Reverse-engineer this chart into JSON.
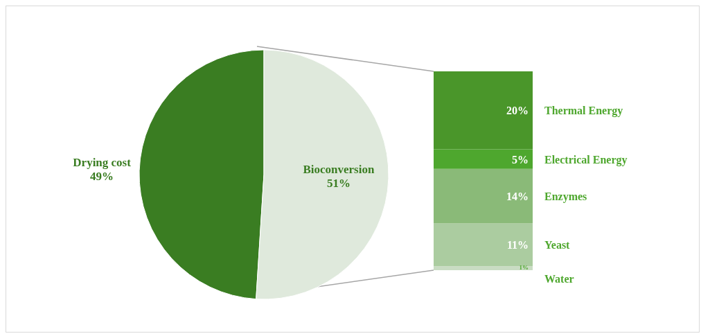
{
  "chart_data": [
    {
      "type": "pie",
      "categories": [
        "Drying cost",
        "Bioconversion"
      ],
      "values": [
        49,
        51
      ],
      "colors": [
        "#3a7d22",
        "#dfe9dc"
      ],
      "value_labels": [
        "49%",
        "51%"
      ]
    },
    {
      "type": "bar",
      "stacked": true,
      "categories": [
        null
      ],
      "series": [
        {
          "name": "Water",
          "color": "#c9dcc3",
          "values": [
            1
          ],
          "value_labels": [
            "1%"
          ]
        },
        {
          "name": "Yeast",
          "color": "#abcca0",
          "values": [
            11
          ],
          "value_labels": [
            "11%"
          ]
        },
        {
          "name": "Enzymes",
          "color": "#8aba78",
          "values": [
            14
          ],
          "value_labels": [
            "14%"
          ]
        },
        {
          "name": "Electrical Energy",
          "color": "#4ea72e",
          "values": [
            5
          ],
          "value_labels": [
            "5%"
          ]
        },
        {
          "name": "Thermal Energy",
          "color": "#4a962a",
          "values": [
            20
          ],
          "value_labels": [
            "20%"
          ]
        }
      ]
    }
  ]
}
